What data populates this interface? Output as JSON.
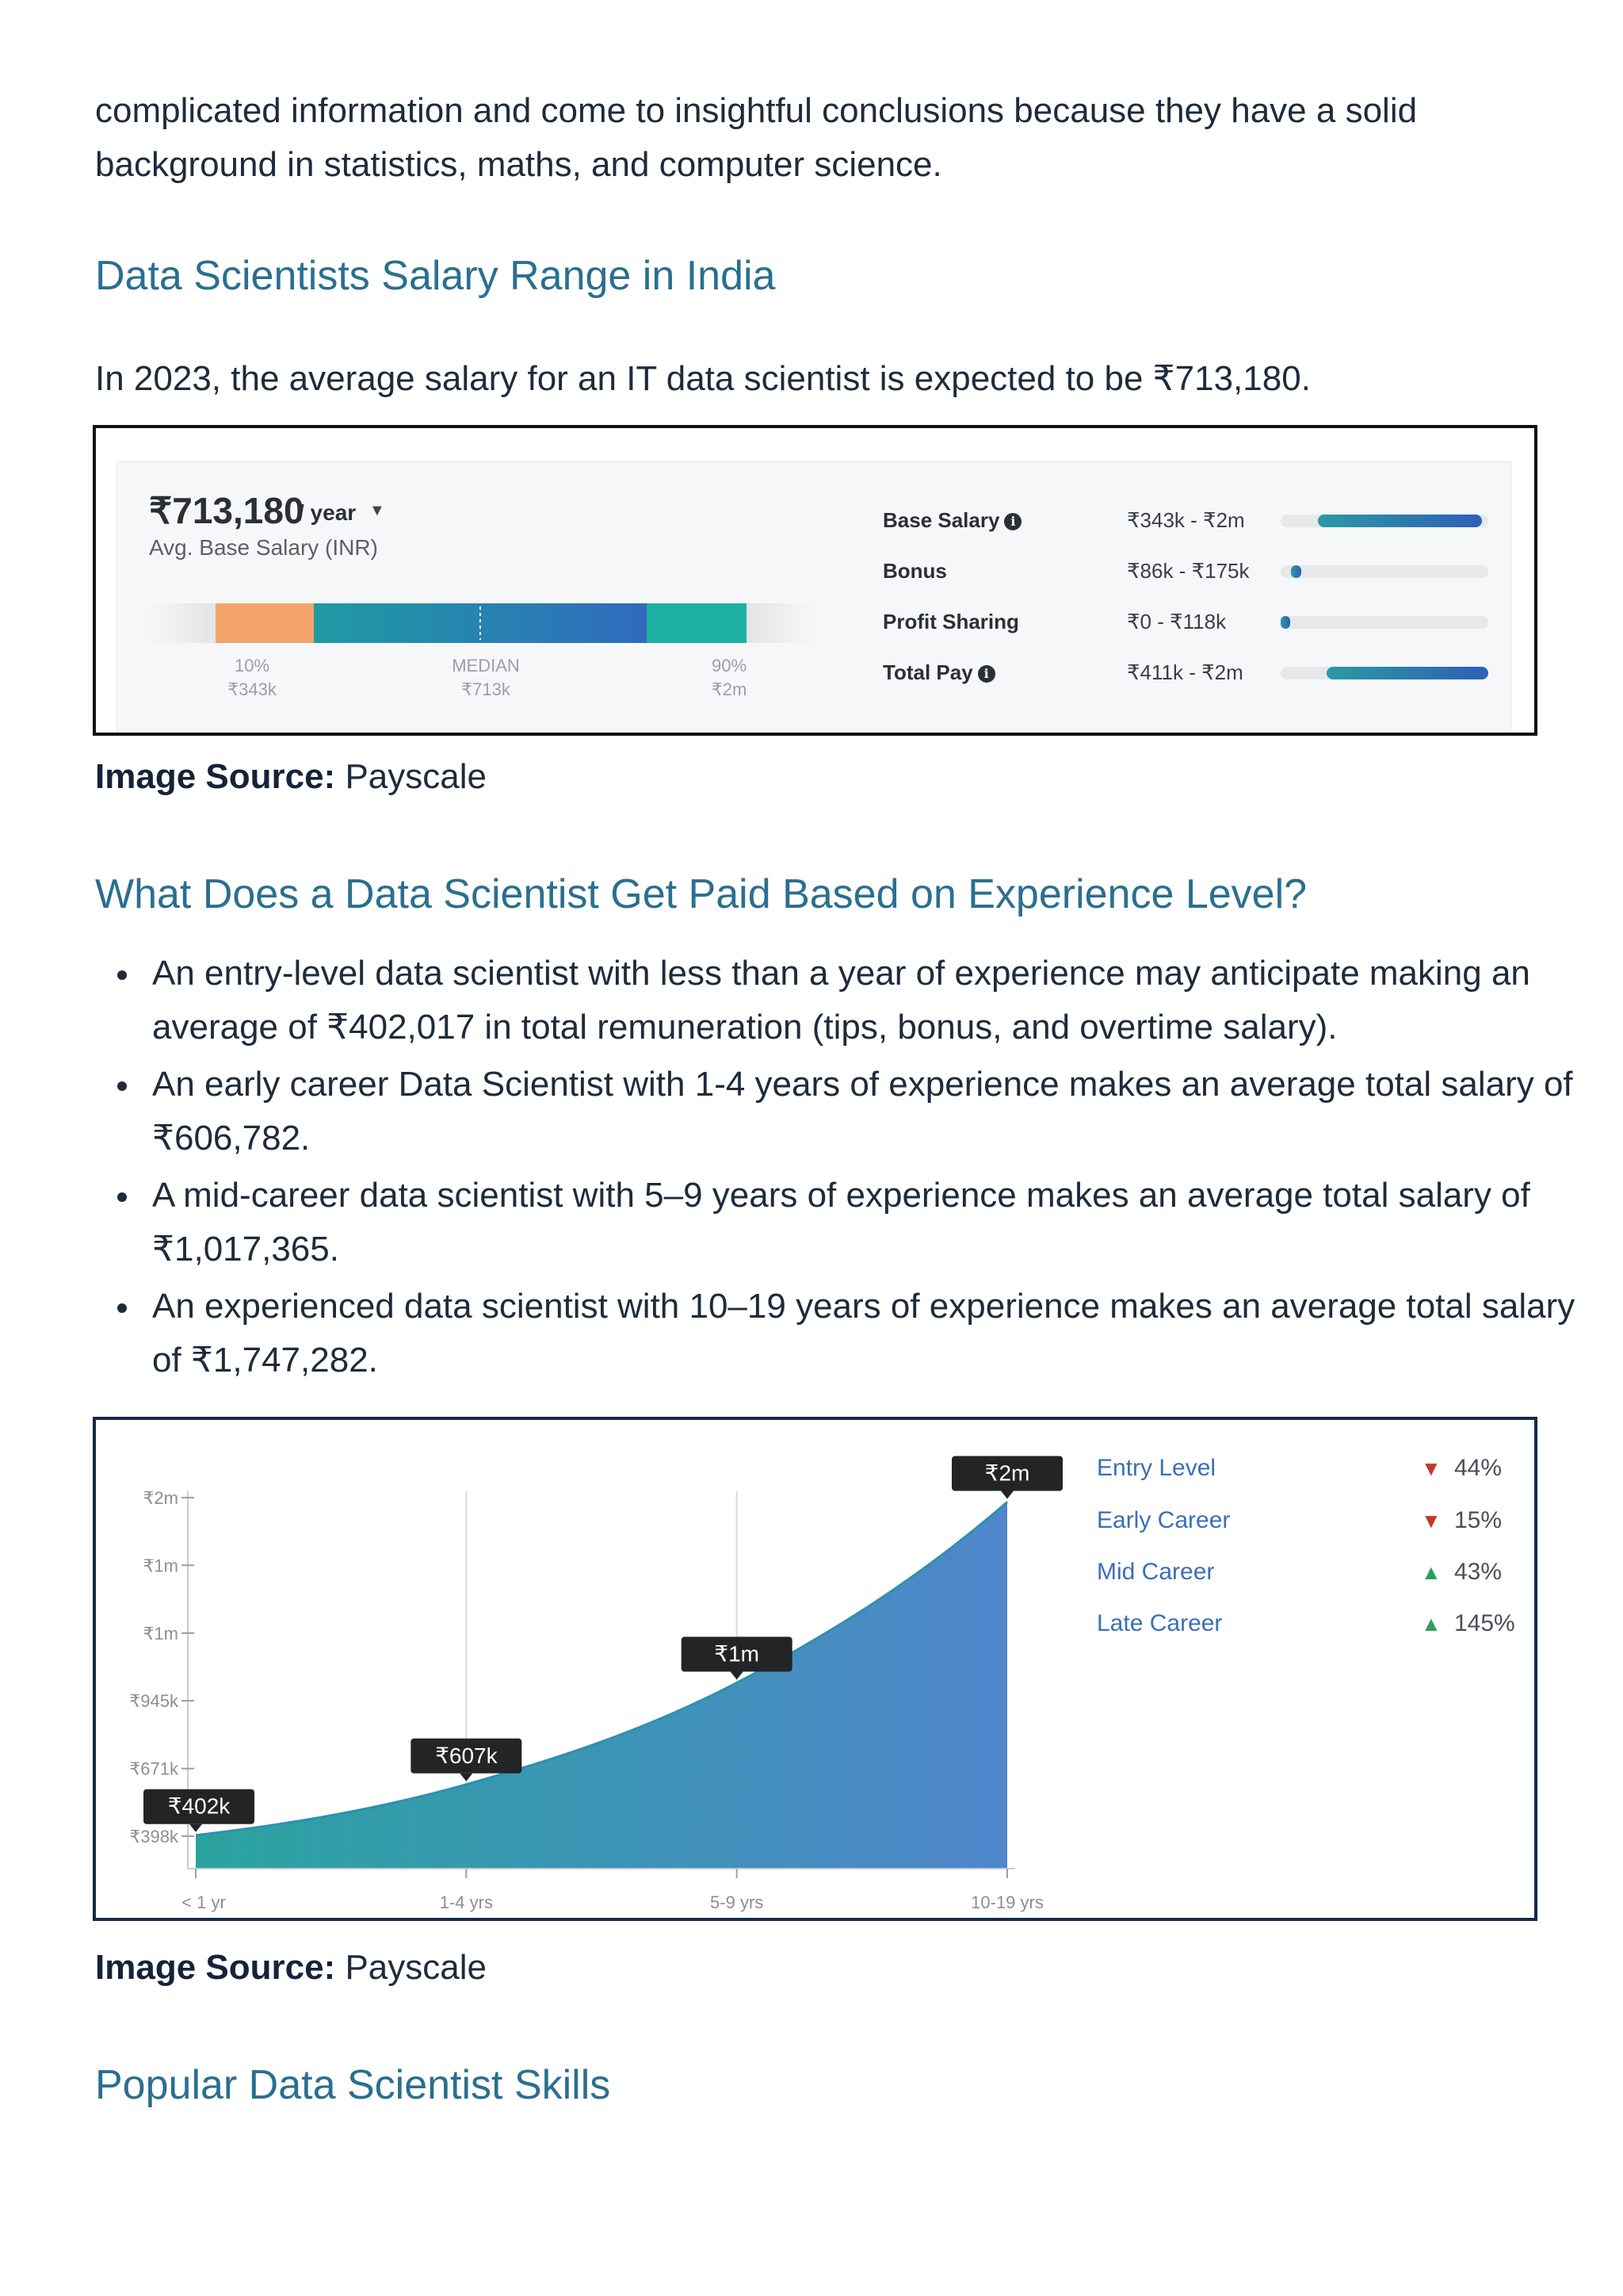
{
  "intro": {
    "line1": "complicated information and come to insightful conclusions because they have a solid",
    "line2": "background in statistics, maths, and computer science."
  },
  "section1": {
    "heading": "Data Scientists Salary Range in India",
    "text": "In 2023, the average salary for an IT data scientist is expected to be ₹713,180."
  },
  "figure1": {
    "amount": "₹713,180",
    "unit": "/ year",
    "subtitle": "Avg. Base Salary (INR)",
    "percentiles": [
      {
        "label": "10%",
        "value": "₹343k"
      },
      {
        "label": "MEDIAN",
        "value": "₹713k"
      },
      {
        "label": "90%",
        "value": "₹2m"
      }
    ],
    "colors": {
      "low": "#f4a46a",
      "mid_start": "#1f9ba3",
      "mid_end": "#2f6bbd",
      "high": "#1cb1a3"
    },
    "components": [
      {
        "name": "Base Salary",
        "info_icon": "info-icon",
        "range": "₹343k - ₹2m",
        "fill_start": 0.18,
        "fill_end": 0.97
      },
      {
        "name": "Bonus",
        "info_icon": "",
        "range": "₹86k - ₹175k",
        "fill_start": 0.05,
        "fill_end": 0.1
      },
      {
        "name": "Profit Sharing",
        "info_icon": "",
        "range": "₹0 - ₹118k",
        "fill_start": 0.0,
        "fill_end": 0.04
      },
      {
        "name": "Total Pay",
        "info_icon": "info-icon",
        "range": "₹411k - ₹2m",
        "fill_start": 0.22,
        "fill_end": 1.0
      }
    ]
  },
  "source1": {
    "label": "Image Source:",
    "value": "Payscale"
  },
  "section2": {
    "heading": "What Does a Data Scientist Get Paid Based on Experience Level?",
    "bullets": [
      "An entry-level data scientist with less than a year of experience may anticipate making an average of ₹402,017 in total remuneration (tips, bonus, and overtime salary).",
      "An early career Data Scientist with 1-4 years of experience makes an average total salary of ₹606,782.",
      "A mid-career data scientist with 5–9 years of experience makes an average total salary of ₹1,017,365.",
      "An experienced data scientist with 10–19 years of experience makes an average total salary of ₹1,747,282."
    ]
  },
  "chart_data": {
    "type": "area",
    "categories": [
      "< 1 yr",
      "1-4 yrs",
      "5-9 yrs",
      "10-19 yrs"
    ],
    "values": [
      402017,
      606782,
      1017365,
      1747282
    ],
    "point_labels": [
      "₹402k",
      "₹607k",
      "₹1m",
      "₹2m"
    ],
    "y_ticks": [
      {
        "label": "₹398k",
        "value": 398000
      },
      {
        "label": "₹671k",
        "value": 671000
      },
      {
        "label": "₹945k",
        "value": 945000
      },
      {
        "label": "₹1m",
        "value": 1218000
      },
      {
        "label": "₹1m",
        "value": 1492000
      },
      {
        "label": "₹2m",
        "value": 1765000
      }
    ],
    "ylim": [
      398000,
      1765000
    ],
    "grid": "vertical",
    "fill_colors": [
      "#2aa39f",
      "#4f86cc"
    ],
    "legend": [
      {
        "name": "Entry Level",
        "direction": "down",
        "value": "44%",
        "color": "#c0392b"
      },
      {
        "name": "Early Career",
        "direction": "down",
        "value": "15%",
        "color": "#c0392b"
      },
      {
        "name": "Mid Career",
        "direction": "up",
        "value": "43%",
        "color": "#2e9e5b"
      },
      {
        "name": "Late Career",
        "direction": "up",
        "value": "145%",
        "color": "#2e9e5b"
      }
    ]
  },
  "source2": {
    "label": "Image Source:",
    "value": "Payscale"
  },
  "section3": {
    "heading": "Popular Data Scientist Skills"
  }
}
